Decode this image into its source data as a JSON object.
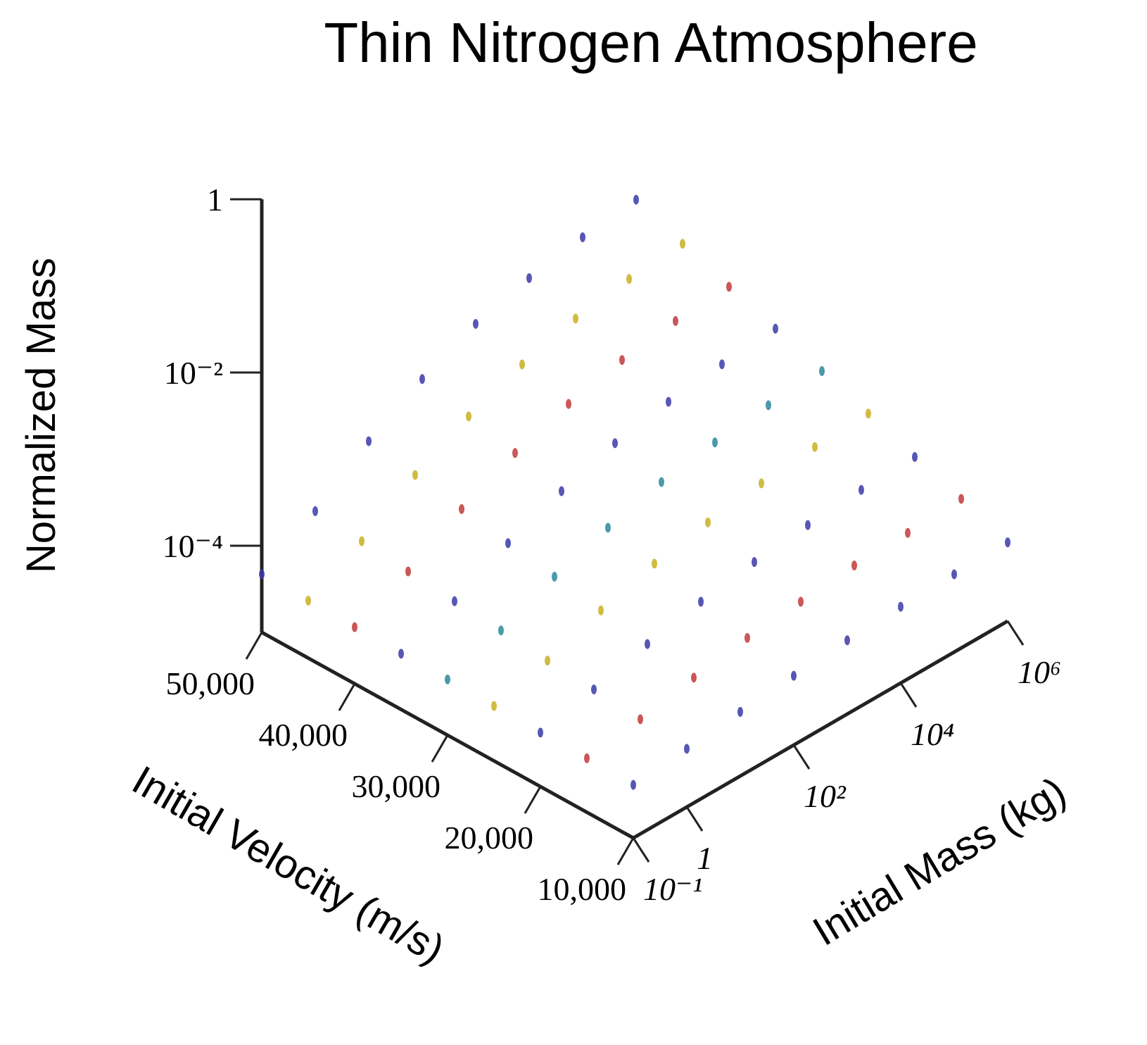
{
  "chart_data": {
    "type": "scatter3d",
    "title": "Thin Nitrogen Atmosphere",
    "xlabel": "Initial Velocity (m/s)",
    "ylabel": "Initial Mass (kg)",
    "zlabel": "Normalized Mass",
    "xlim": [
      10000,
      50000
    ],
    "xticks": [
      {
        "value": 10000,
        "label": "10,000"
      },
      {
        "value": 20000,
        "label": "20,000"
      },
      {
        "value": 30000,
        "label": "30,000"
      },
      {
        "value": 40000,
        "label": "40,000"
      },
      {
        "value": 50000,
        "label": "50,000"
      }
    ],
    "ylim": [
      0.1,
      1000000
    ],
    "ylog": true,
    "yticks": [
      {
        "value": 0.1,
        "label": "10⁻¹"
      },
      1,
      {
        "value": 100,
        "label": "10²"
      },
      {
        "value": 10000,
        "label": "10⁴"
      },
      {
        "value": 1000000,
        "label": "10⁶"
      }
    ],
    "zlim": [
      1e-05,
      1
    ],
    "zlog": true,
    "zticks": [
      1,
      {
        "value": 0.01,
        "label": "10⁻²"
      },
      {
        "value": 0.0001,
        "label": "10⁻⁴"
      }
    ],
    "x": [
      0.1,
      1,
      10,
      100,
      1000,
      10000,
      100000,
      1000000
    ],
    "series": [
      {
        "velocity": 10000,
        "color": "#3a3aa8",
        "values": [
          4.1e-05,
          4.7e-05,
          5.5e-05,
          6.3e-05,
          7.1e-05,
          7.6e-05,
          7.9e-05,
          8.1e-05
        ]
      },
      {
        "velocity": 15000,
        "color": "#c23a3a",
        "values": [
          4.2e-05,
          5.2e-05,
          6.9e-05,
          8.7e-05,
          0.0001,
          0.000115,
          0.00012,
          0.00013
        ]
      },
      {
        "velocity": 20000,
        "color": "#3a3aa8",
        "values": [
          4.2e-05,
          5.8e-05,
          8.5e-05,
          0.000115,
          0.000145,
          0.00017,
          0.00019,
          0.0002
        ]
      },
      {
        "velocity": 25000,
        "color": "#c8b020",
        "values": [
          4.3e-05,
          6.3e-05,
          0.000105,
          0.00016,
          0.00021,
          0.00026,
          0.0003,
          0.00032
        ]
      },
      {
        "velocity": 30000,
        "color": "#2a8a9a",
        "values": [
          4.4e-05,
          7.1e-05,
          0.00013,
          0.00021,
          0.00031,
          0.00039,
          0.00046,
          0.0005
        ]
      },
      {
        "velocity": 35000,
        "color": "#3a3aa8",
        "values": [
          4.4e-05,
          7.8e-05,
          0.00016,
          0.00028,
          0.00044,
          0.00058,
          0.00069,
          0.00078
        ]
      },
      {
        "velocity": 40000,
        "color": "#c23a3a",
        "values": [
          4.5e-05,
          8.7e-05,
          0.0002,
          0.00039,
          0.00063,
          0.00089,
          0.0011,
          0.0012
        ]
      },
      {
        "velocity": 45000,
        "color": "#c8b020",
        "values": [
          4.6e-05,
          9.8e-05,
          0.00025,
          0.00052,
          0.00091,
          0.00135,
          0.0017,
          0.0019
        ]
      },
      {
        "velocity": 50000,
        "color": "#3a3aa8",
        "values": [
          4.7e-05,
          0.00011,
          0.00031,
          0.00071,
          0.00135,
          0.002,
          0.0026,
          0.0031
        ]
      }
    ]
  }
}
